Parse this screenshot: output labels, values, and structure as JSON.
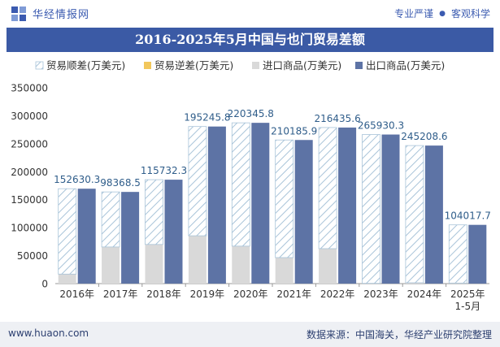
{
  "header": {
    "brand_name": "华经情报网",
    "tagline_left": "专业严谨",
    "tagline_right": "客观科学"
  },
  "title": "2016-2025年5月中国与也门贸易差额",
  "footer": {
    "url": "www.huaon.com",
    "source": "数据来源：中国海关，华经产业研究院整理"
  },
  "colors": {
    "brand": "#3b5bb0",
    "title_band": "#3b5aa5",
    "export": "#5d73a5",
    "import": "#d9d9d9",
    "surplus_hatch": "#a9c4d9",
    "deficit": "#f2c75c",
    "label": "#2f5d8a",
    "footer_band": "#eef0f4"
  },
  "chart_data": {
    "type": "bar",
    "categories": [
      "2016年",
      "2017年",
      "2018年",
      "2019年",
      "2020年",
      "2021年",
      "2022年",
      "2023年",
      "2024年",
      "2025年\n1-5月"
    ],
    "series": [
      {
        "name": "贸易顺差(万美元)",
        "values": [
          152630.3,
          98368.5,
          115732.3,
          195245.8,
          220345.8,
          210185.9,
          216435.6,
          265930.3,
          245208.6,
          104017.7
        ]
      },
      {
        "name": "贸易逆差(万美元)",
        "values": [
          0,
          0,
          0,
          0,
          0,
          0,
          0,
          0,
          0,
          0
        ]
      },
      {
        "name": "进口商品(万美元)",
        "values": [
          17000,
          65500,
          70000,
          85500,
          67000,
          46500,
          62500,
          500,
          1500,
          1000
        ]
      },
      {
        "name": "出口商品(万美元)",
        "values": [
          169630.3,
          163868.5,
          185732.3,
          280745.8,
          287345.8,
          256685.9,
          278935.6,
          266430.3,
          246708.6,
          105017.7
        ]
      }
    ],
    "data_labels": [
      "152630.3",
      "98368.5",
      "115732.3",
      "195245.8",
      "220345.8",
      "210185.9",
      "216435.6",
      "265930.3",
      "245208.6",
      "104017.7"
    ],
    "yticks": [
      "0",
      "50000",
      "100000",
      "150000",
      "200000",
      "250000",
      "300000",
      "350000"
    ],
    "ylim": [
      0,
      350000
    ],
    "xlabel": "",
    "ylabel": "",
    "legend_position": "top",
    "grid": false
  }
}
